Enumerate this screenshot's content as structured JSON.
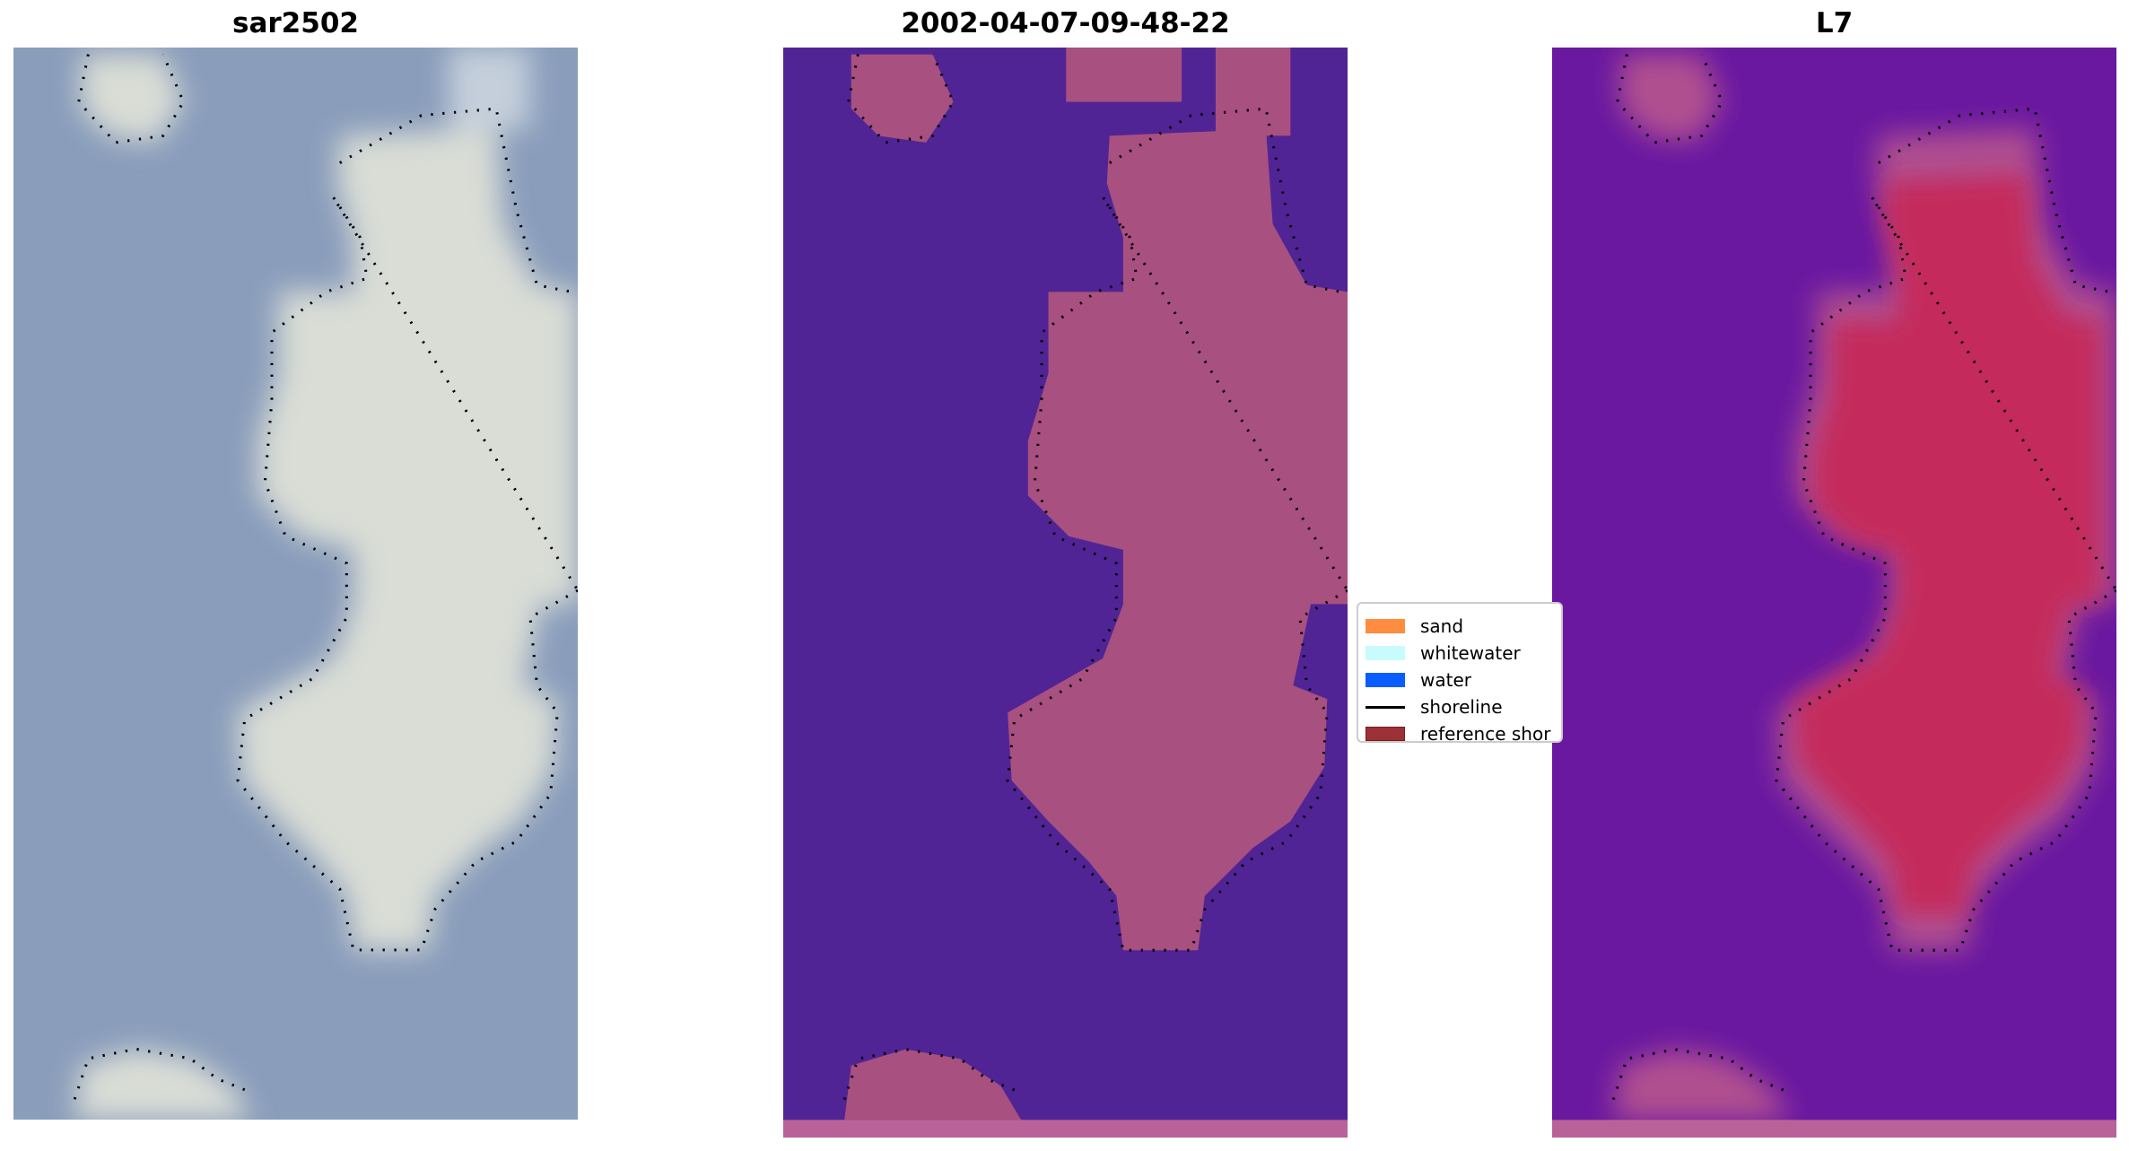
{
  "chart_data": {
    "type": "image",
    "panels": [
      {
        "title": "sar2502"
      },
      {
        "title": "2002-04-07-09-48-22"
      },
      {
        "title": "L7"
      }
    ],
    "legend": {
      "placement": "center-right of middle panel",
      "entries": [
        {
          "label": "sand",
          "color": "#ff8c3f"
        },
        {
          "label": "whitewater",
          "color": "#c8fcfc"
        },
        {
          "label": "water",
          "color": "#0a5cff"
        },
        {
          "label": "shoreline",
          "color": "#000000"
        },
        {
          "label": "reference shor",
          "color": "#9b3136"
        }
      ]
    }
  },
  "colors": {
    "rgb_water": "#8a9dbb",
    "rgb_land": "#d9ddd6",
    "class_water": "#512495",
    "class_land": "#a8507f",
    "index_water": "#6a18a0",
    "index_land": "#c42b5c"
  }
}
